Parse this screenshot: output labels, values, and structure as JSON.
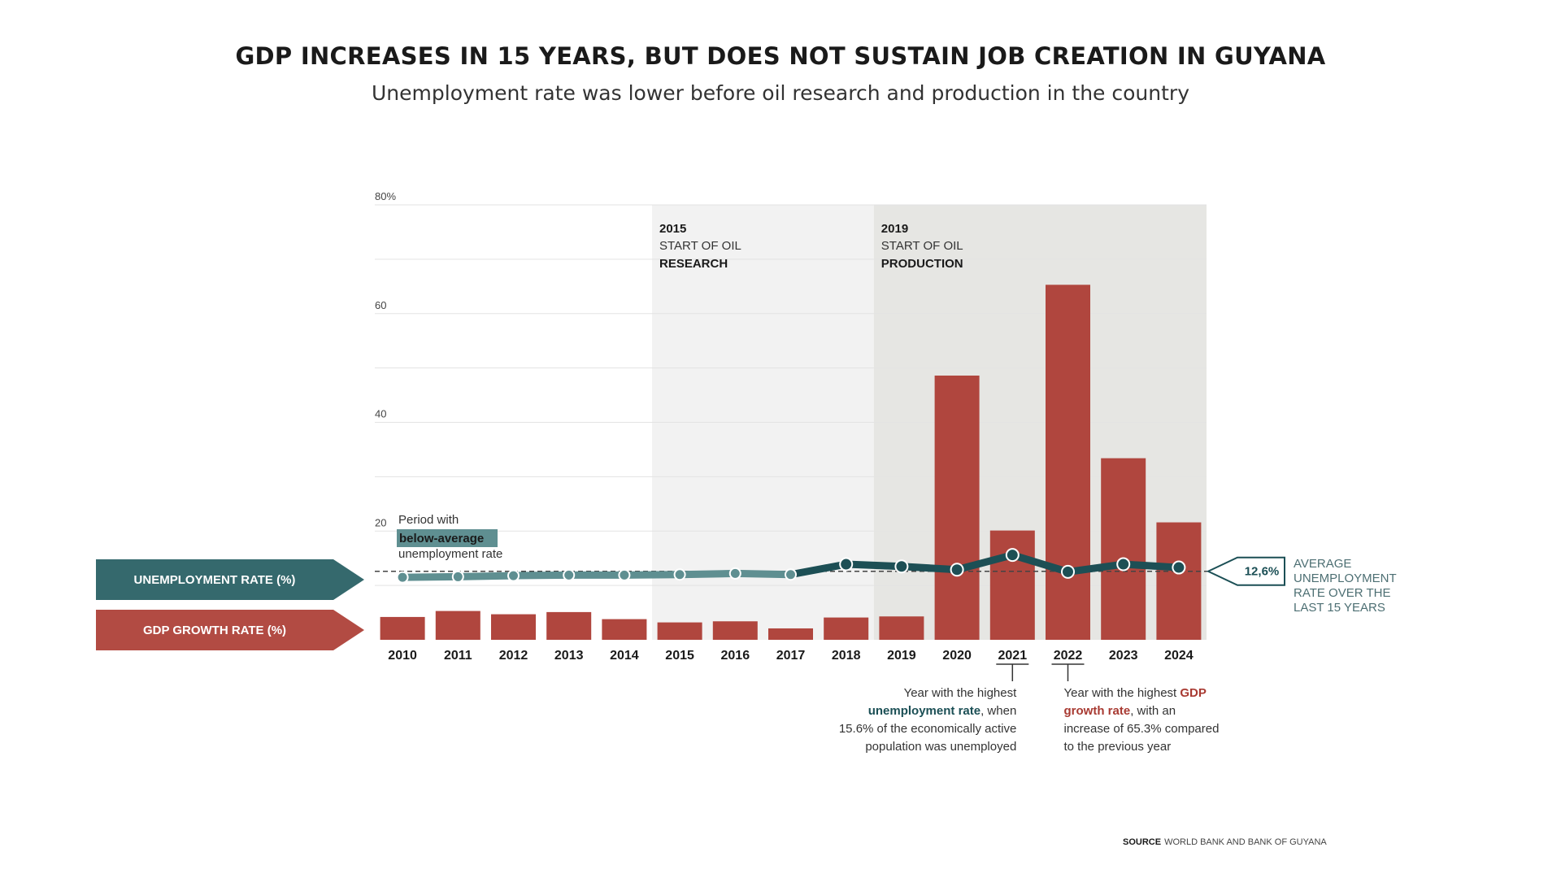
{
  "title": "GDP INCREASES IN 15 YEARS, BUT DOES NOT SUSTAIN JOB CREATION IN GUYANA",
  "subtitle": "Unemployment rate was lower before oil research and production in the country",
  "colors": {
    "gdp_bar": "#b0463e",
    "unemployment_line_below": "#5f8f91",
    "unemployment_line_above": "#1d4f55",
    "legend_unemployment": "#35696d",
    "legend_gdp": "#b24b43",
    "research_band": "#f2f2f2",
    "production_band": "#e6e6e3",
    "note_red": "#a83a32",
    "note_teal": "#1b4f55"
  },
  "chart_data": {
    "type": "bar",
    "categories": [
      "2010",
      "2011",
      "2012",
      "2013",
      "2014",
      "2015",
      "2016",
      "2017",
      "2018",
      "2019",
      "2020",
      "2021",
      "2022",
      "2023",
      "2024"
    ],
    "series": [
      {
        "name": "GDP GROWTH RATE (%)",
        "type": "bar",
        "values": [
          4.2,
          5.3,
          4.7,
          5.1,
          3.8,
          3.2,
          3.4,
          2.1,
          4.1,
          4.3,
          48.6,
          20.1,
          65.3,
          33.4,
          21.6
        ]
      },
      {
        "name": "UNEMPLOYMENT RATE (%)",
        "type": "line",
        "values": [
          11.5,
          11.6,
          11.8,
          11.9,
          11.9,
          12.0,
          12.2,
          12.0,
          13.9,
          13.5,
          12.9,
          15.6,
          12.5,
          13.9,
          13.3
        ]
      }
    ],
    "y_ticks": [
      "80%",
      "60",
      "40",
      "20"
    ],
    "ylim": [
      0,
      80
    ],
    "average": {
      "value": 12.6,
      "value_label": "12,6%",
      "label_lines": [
        "AVERAGE",
        "UNEMPLOYMENT",
        "RATE OVER THE",
        "LAST 15 YEARS"
      ]
    },
    "periods": [
      {
        "start": "2015",
        "end": "2018",
        "year": "2015",
        "line1": "START OF OIL",
        "line2": "RESEARCH"
      },
      {
        "start": "2019",
        "end": "2024",
        "year": "2019",
        "line1": "START OF OIL",
        "line2": "PRODUCTION"
      }
    ],
    "below_average_note": {
      "line1": "Period with",
      "highlight": "below-average",
      "line3": "unemployment rate"
    },
    "legend": {
      "unemployment": "UNEMPLOYMENT RATE (%)",
      "gdp": "GDP GROWTH RATE (%)"
    },
    "annotations": {
      "unemployment_peak": {
        "year": "2021",
        "line1": "Year with the highest",
        "bold": "unemployment rate",
        "after_bold": ", when",
        "line3": "15.6% of the economically active",
        "line4": "population was unemployed"
      },
      "gdp_peak": {
        "year": "2022",
        "prefix": "Year with the highest ",
        "bold1": "GDP",
        "bold2": "growth rate",
        "after_bold2": ", with an",
        "line3": "increase of 65.3% compared",
        "line4": "to the previous year"
      }
    }
  },
  "source": {
    "label": "SOURCE",
    "text": "WORLD BANK AND BANK OF GUYANA"
  }
}
